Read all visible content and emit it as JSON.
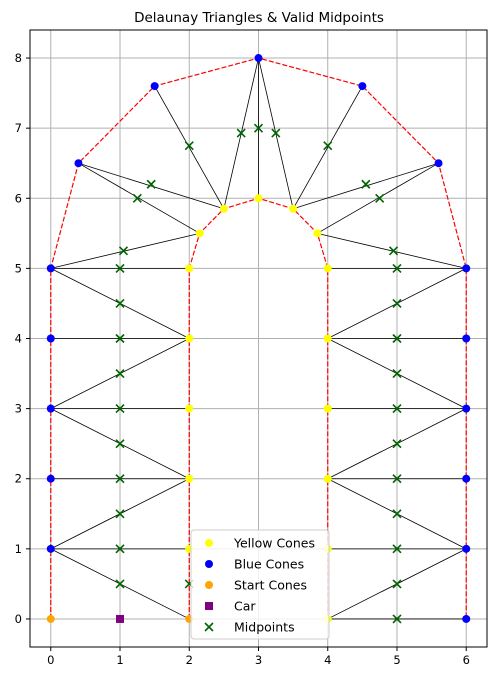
{
  "chart_data": {
    "type": "scatter",
    "title": "Delaunay Triangles & Valid Midpoints",
    "xlabel": "",
    "ylabel": "",
    "xlim": [
      -0.3,
      6.3
    ],
    "ylim": [
      -0.4,
      8.4
    ],
    "xticks": [
      0,
      1,
      2,
      3,
      4,
      5,
      6
    ],
    "yticks": [
      0,
      1,
      2,
      3,
      4,
      5,
      6,
      7,
      8
    ],
    "grid": true,
    "legend_position": "bottom-center",
    "colors": {
      "yellow": "#ffff00",
      "blue": "#0000ff",
      "orange": "#ffa500",
      "purple": "#800080",
      "green": "#006400",
      "boundary": "#ff0000",
      "triangle": "#000000",
      "grid": "#b0b0b0"
    },
    "series": [
      {
        "name": "Yellow Cones",
        "marker": "circle",
        "color": "#ffff00",
        "points": [
          [
            2,
            1
          ],
          [
            2,
            2
          ],
          [
            2,
            3
          ],
          [
            2,
            4
          ],
          [
            2,
            5
          ],
          [
            2.15,
            5.5
          ],
          [
            2.5,
            5.85
          ],
          [
            3,
            6
          ],
          [
            3.5,
            5.85
          ],
          [
            3.85,
            5.5
          ],
          [
            4,
            5
          ],
          [
            4,
            4
          ],
          [
            4,
            3
          ],
          [
            4,
            2
          ],
          [
            4,
            1
          ],
          [
            4,
            0
          ]
        ]
      },
      {
        "name": "Blue Cones",
        "marker": "circle",
        "color": "#0000ff",
        "points": [
          [
            0,
            1
          ],
          [
            0,
            2
          ],
          [
            0,
            3
          ],
          [
            0,
            4
          ],
          [
            0,
            5
          ],
          [
            0.4,
            6.5
          ],
          [
            1.5,
            7.6
          ],
          [
            3,
            8
          ],
          [
            4.5,
            7.6
          ],
          [
            5.6,
            6.5
          ],
          [
            6,
            5
          ],
          [
            6,
            4
          ],
          [
            6,
            3
          ],
          [
            6,
            2
          ],
          [
            6,
            1
          ],
          [
            6,
            0
          ]
        ]
      },
      {
        "name": "Start Cones",
        "marker": "circle",
        "color": "#ffa500",
        "points": [
          [
            0,
            0
          ],
          [
            2,
            0
          ]
        ]
      },
      {
        "name": "Car",
        "marker": "square",
        "color": "#800080",
        "points": [
          [
            1,
            0
          ]
        ]
      },
      {
        "name": "Midpoints",
        "marker": "x",
        "color": "#006400",
        "points": [
          [
            1,
            0.5
          ],
          [
            1,
            1
          ],
          [
            1,
            1.5
          ],
          [
            1,
            2
          ],
          [
            1,
            2.5
          ],
          [
            1,
            3
          ],
          [
            1,
            3.5
          ],
          [
            1,
            4
          ],
          [
            1,
            4.5
          ],
          [
            1,
            5
          ],
          [
            1.05,
            5.25
          ],
          [
            1.25,
            6
          ],
          [
            1.45,
            6.2
          ],
          [
            2,
            6.75
          ],
          [
            2.75,
            6.93
          ],
          [
            3,
            7
          ],
          [
            3.25,
            6.93
          ],
          [
            4,
            6.75
          ],
          [
            4.55,
            6.2
          ],
          [
            4.75,
            6
          ],
          [
            4.95,
            5.25
          ],
          [
            5,
            5
          ],
          [
            5,
            4.5
          ],
          [
            5,
            4
          ],
          [
            5,
            3.5
          ],
          [
            5,
            3
          ],
          [
            5,
            2.5
          ],
          [
            5,
            2
          ],
          [
            5,
            1.5
          ],
          [
            5,
            1
          ],
          [
            5,
            0.5
          ],
          [
            5,
            0
          ],
          [
            2,
            0.5
          ]
        ]
      }
    ],
    "boundaries": [
      [
        [
          0,
          0
        ],
        [
          0,
          1
        ],
        [
          0,
          2
        ],
        [
          0,
          3
        ],
        [
          0,
          4
        ],
        [
          0,
          5
        ],
        [
          0.4,
          6.5
        ],
        [
          1.5,
          7.6
        ],
        [
          3,
          8
        ],
        [
          4.5,
          7.6
        ],
        [
          5.6,
          6.5
        ],
        [
          6,
          5
        ],
        [
          6,
          4
        ],
        [
          6,
          3
        ],
        [
          6,
          2
        ],
        [
          6,
          1
        ],
        [
          6,
          0
        ]
      ],
      [
        [
          2,
          0
        ],
        [
          2,
          1
        ],
        [
          2,
          2
        ],
        [
          2,
          3
        ],
        [
          2,
          4
        ],
        [
          2,
          5
        ],
        [
          2.15,
          5.5
        ],
        [
          2.5,
          5.85
        ],
        [
          3,
          6
        ],
        [
          3.5,
          5.85
        ],
        [
          3.85,
          5.5
        ],
        [
          4,
          5
        ],
        [
          4,
          4
        ],
        [
          4,
          3
        ],
        [
          4,
          2
        ],
        [
          4,
          1
        ],
        [
          4,
          0
        ]
      ]
    ],
    "triangle_edges": [
      [
        [
          0,
          1
        ],
        [
          2,
          0
        ]
      ],
      [
        [
          0,
          1
        ],
        [
          2,
          1
        ]
      ],
      [
        [
          0,
          1
        ],
        [
          2,
          2
        ]
      ],
      [
        [
          0,
          2
        ],
        [
          2,
          2
        ]
      ],
      [
        [
          0,
          3
        ],
        [
          2,
          2
        ]
      ],
      [
        [
          0,
          3
        ],
        [
          2,
          3
        ]
      ],
      [
        [
          0,
          3
        ],
        [
          2,
          4
        ]
      ],
      [
        [
          0,
          4
        ],
        [
          2,
          4
        ]
      ],
      [
        [
          0,
          5
        ],
        [
          2,
          4
        ]
      ],
      [
        [
          0,
          5
        ],
        [
          2,
          5
        ]
      ],
      [
        [
          0,
          5
        ],
        [
          2.15,
          5.5
        ]
      ],
      [
        [
          0.4,
          6.5
        ],
        [
          2.15,
          5.5
        ]
      ],
      [
        [
          0.4,
          6.5
        ],
        [
          2.5,
          5.85
        ]
      ],
      [
        [
          1.5,
          7.6
        ],
        [
          2.5,
          5.85
        ]
      ],
      [
        [
          3,
          8
        ],
        [
          2.5,
          5.85
        ]
      ],
      [
        [
          3,
          8
        ],
        [
          3,
          6
        ]
      ],
      [
        [
          3,
          8
        ],
        [
          3.5,
          5.85
        ]
      ],
      [
        [
          4.5,
          7.6
        ],
        [
          3.5,
          5.85
        ]
      ],
      [
        [
          5.6,
          6.5
        ],
        [
          3.5,
          5.85
        ]
      ],
      [
        [
          5.6,
          6.5
        ],
        [
          3.85,
          5.5
        ]
      ],
      [
        [
          6,
          5
        ],
        [
          3.85,
          5.5
        ]
      ],
      [
        [
          6,
          5
        ],
        [
          4,
          5
        ]
      ],
      [
        [
          6,
          5
        ],
        [
          4,
          4
        ]
      ],
      [
        [
          6,
          4
        ],
        [
          4,
          4
        ]
      ],
      [
        [
          6,
          3
        ],
        [
          4,
          4
        ]
      ],
      [
        [
          6,
          3
        ],
        [
          4,
          3
        ]
      ],
      [
        [
          6,
          3
        ],
        [
          4,
          2
        ]
      ],
      [
        [
          6,
          2
        ],
        [
          4,
          2
        ]
      ],
      [
        [
          6,
          1
        ],
        [
          4,
          2
        ]
      ],
      [
        [
          6,
          1
        ],
        [
          4,
          1
        ]
      ],
      [
        [
          6,
          1
        ],
        [
          4,
          0
        ]
      ],
      [
        [
          6,
          0
        ],
        [
          4,
          0
        ]
      ]
    ],
    "legend": [
      "Yellow Cones",
      "Blue Cones",
      "Start Cones",
      "Car",
      "Midpoints"
    ]
  }
}
